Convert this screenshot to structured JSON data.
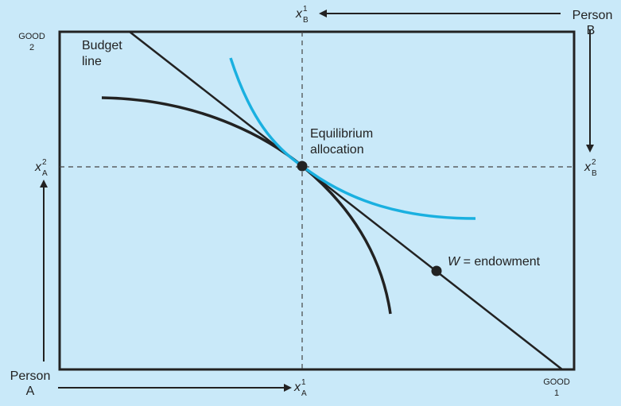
{
  "labels": {
    "good2": {
      "text": "GOOD",
      "number": "2"
    },
    "budget_line": [
      "Budget",
      "line"
    ],
    "xb1": {
      "base": "x",
      "sup": "1",
      "sub": "B"
    },
    "person_b": [
      "Person",
      "B"
    ],
    "xa2": {
      "base": "x",
      "sup": "2",
      "sub": "A"
    },
    "equilibrium": [
      "Equilibrium",
      "allocation"
    ],
    "xb2": {
      "base": "x",
      "sup": "2",
      "sub": "B"
    },
    "endowment": {
      "symbol": "W",
      "text": "= endowment"
    },
    "person_a": [
      "Person",
      "A"
    ],
    "xa1": {
      "base": "x",
      "sup": "1",
      "sub": "A"
    },
    "good1": {
      "text": "GOOD",
      "number": "1"
    }
  }
}
